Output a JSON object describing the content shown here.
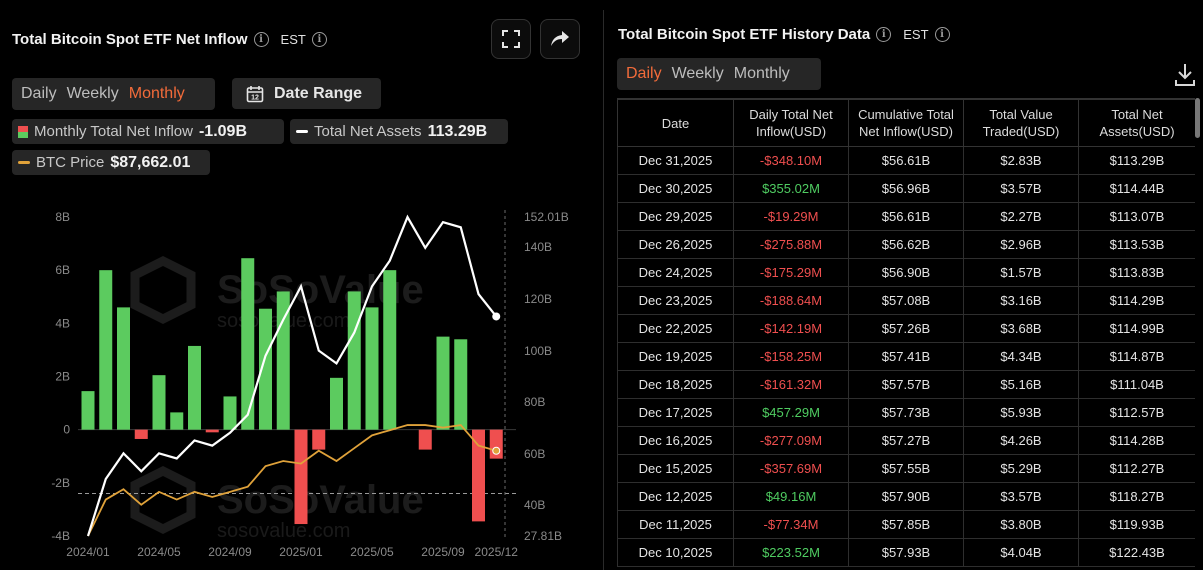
{
  "left": {
    "title": "Total Bitcoin Spot ETF Net Inflow",
    "timezone": "EST",
    "tabs": [
      {
        "label": "Daily",
        "active": false
      },
      {
        "label": "Weekly",
        "active": false
      },
      {
        "label": "Monthly",
        "active": true
      }
    ],
    "date_range_label": "Date Range",
    "legend": {
      "net_inflow_label": "Monthly Total Net Inflow",
      "net_inflow_value": "-1.09B",
      "total_assets_label": "Total Net Assets",
      "total_assets_value": "113.29B",
      "btc_label": "BTC Price",
      "btc_value": "$87,662.01"
    },
    "watermark": "SoSoValue",
    "watermark_sub": "sosovalue.com"
  },
  "chart_data": {
    "type": "bar",
    "title": "Total Bitcoin Spot ETF Net Inflow",
    "categories": [
      "2024/01",
      "2024/02",
      "2024/03",
      "2024/04",
      "2024/05",
      "2024/06",
      "2024/07",
      "2024/08",
      "2024/09",
      "2024/10",
      "2024/11",
      "2024/12",
      "2025/01",
      "2025/02",
      "2025/03",
      "2025/04",
      "2025/05",
      "2025/06",
      "2025/07",
      "2025/08",
      "2025/09",
      "2025/10",
      "2025/11",
      "2025/12"
    ],
    "x_ticks": [
      "2024/01",
      "2024/05",
      "2024/09",
      "2025/01",
      "2025/05",
      "2025/09",
      "2025/12"
    ],
    "series": [
      {
        "name": "Monthly Total Net Inflow",
        "axis": "left",
        "values": [
          1.45,
          6.0,
          4.6,
          -0.35,
          2.05,
          0.65,
          3.15,
          -0.1,
          1.25,
          6.45,
          4.55,
          5.2,
          -3.55,
          -0.75,
          1.95,
          5.2,
          4.6,
          6.0,
          0.0,
          -0.75,
          3.5,
          3.4,
          -3.45,
          -1.09
        ]
      },
      {
        "name": "Total Net Assets",
        "axis": "right",
        "values": [
          27.81,
          50.0,
          60.0,
          53.0,
          60.0,
          58.0,
          65.0,
          63.0,
          68.0,
          75.0,
          98.0,
          112.0,
          125.0,
          100.0,
          95.0,
          107.0,
          125.0,
          135.0,
          152.0,
          140.0,
          150.0,
          148.0,
          122.0,
          113.29
        ]
      },
      {
        "name": "BTC Price",
        "axis": "right",
        "values": [
          27.81,
          42.0,
          46.0,
          40.0,
          45.0,
          42.0,
          45.0,
          43.0,
          45.0,
          47.0,
          55.0,
          57.0,
          56.0,
          61.0,
          57.0,
          62.0,
          67.0,
          69.0,
          71.0,
          71.0,
          70.0,
          71.0,
          63.0,
          61.0
        ]
      }
    ],
    "y_left": {
      "ticks": [
        "8B",
        "6B",
        "4B",
        "2B",
        "0",
        "-2B",
        "-4B"
      ],
      "range": [
        -4,
        8
      ]
    },
    "y_right": {
      "ticks": [
        "152.01B",
        "140B",
        "120B",
        "100B",
        "80B",
        "60B",
        "40B",
        "27.81B"
      ],
      "range": [
        27.81,
        152.01
      ]
    },
    "colors": {
      "positive": "#5ccb5f",
      "negative": "#ef4f4f",
      "assets": "#ffffff",
      "btc": "#e0a23a"
    }
  },
  "right": {
    "title": "Total Bitcoin Spot ETF History Data",
    "timezone": "EST",
    "tabs": [
      {
        "label": "Daily",
        "active": true
      },
      {
        "label": "Weekly",
        "active": false
      },
      {
        "label": "Monthly",
        "active": false
      }
    ],
    "columns": [
      "Date",
      "Daily Total Net Inflow(USD)",
      "Cumulative Total Net Inflow(USD)",
      "Total Value Traded(USD)",
      "Total Net Assets(USD)"
    ],
    "rows": [
      {
        "date": "Dec 31,2025",
        "inflow": "-$348.10M",
        "sign": "neg",
        "cumulative": "$56.61B",
        "traded": "$2.83B",
        "assets": "$113.29B"
      },
      {
        "date": "Dec 30,2025",
        "inflow": "$355.02M",
        "sign": "pos",
        "cumulative": "$56.96B",
        "traded": "$3.57B",
        "assets": "$114.44B"
      },
      {
        "date": "Dec 29,2025",
        "inflow": "-$19.29M",
        "sign": "neg",
        "cumulative": "$56.61B",
        "traded": "$2.27B",
        "assets": "$113.07B"
      },
      {
        "date": "Dec 26,2025",
        "inflow": "-$275.88M",
        "sign": "neg",
        "cumulative": "$56.62B",
        "traded": "$2.96B",
        "assets": "$113.53B"
      },
      {
        "date": "Dec 24,2025",
        "inflow": "-$175.29M",
        "sign": "neg",
        "cumulative": "$56.90B",
        "traded": "$1.57B",
        "assets": "$113.83B"
      },
      {
        "date": "Dec 23,2025",
        "inflow": "-$188.64M",
        "sign": "neg",
        "cumulative": "$57.08B",
        "traded": "$3.16B",
        "assets": "$114.29B"
      },
      {
        "date": "Dec 22,2025",
        "inflow": "-$142.19M",
        "sign": "neg",
        "cumulative": "$57.26B",
        "traded": "$3.68B",
        "assets": "$114.99B"
      },
      {
        "date": "Dec 19,2025",
        "inflow": "-$158.25M",
        "sign": "neg",
        "cumulative": "$57.41B",
        "traded": "$4.34B",
        "assets": "$114.87B"
      },
      {
        "date": "Dec 18,2025",
        "inflow": "-$161.32M",
        "sign": "neg",
        "cumulative": "$57.57B",
        "traded": "$5.16B",
        "assets": "$111.04B"
      },
      {
        "date": "Dec 17,2025",
        "inflow": "$457.29M",
        "sign": "pos",
        "cumulative": "$57.73B",
        "traded": "$5.93B",
        "assets": "$112.57B"
      },
      {
        "date": "Dec 16,2025",
        "inflow": "-$277.09M",
        "sign": "neg",
        "cumulative": "$57.27B",
        "traded": "$4.26B",
        "assets": "$114.28B"
      },
      {
        "date": "Dec 15,2025",
        "inflow": "-$357.69M",
        "sign": "neg",
        "cumulative": "$57.55B",
        "traded": "$5.29B",
        "assets": "$112.27B"
      },
      {
        "date": "Dec 12,2025",
        "inflow": "$49.16M",
        "sign": "pos",
        "cumulative": "$57.90B",
        "traded": "$3.57B",
        "assets": "$118.27B"
      },
      {
        "date": "Dec 11,2025",
        "inflow": "-$77.34M",
        "sign": "neg",
        "cumulative": "$57.85B",
        "traded": "$3.80B",
        "assets": "$119.93B"
      },
      {
        "date": "Dec 10,2025",
        "inflow": "$223.52M",
        "sign": "pos",
        "cumulative": "$57.93B",
        "traded": "$4.04B",
        "assets": "$122.43B"
      }
    ]
  }
}
